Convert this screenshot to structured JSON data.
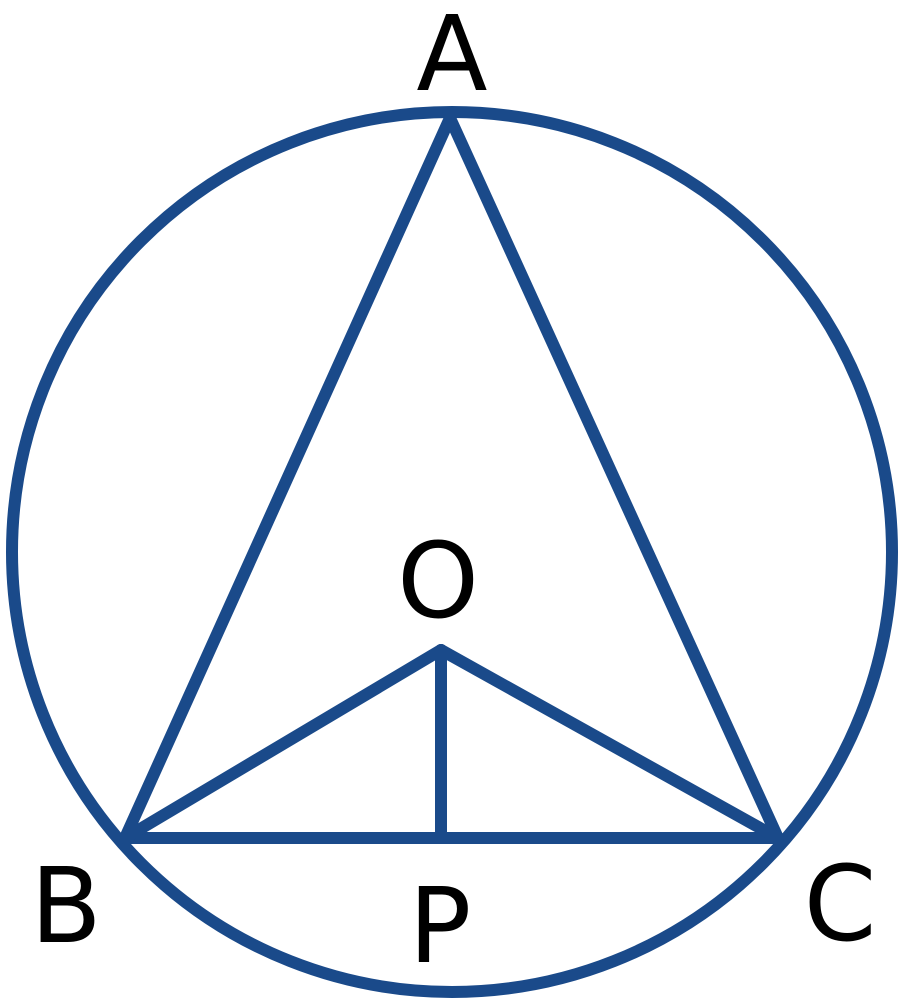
{
  "diagram": {
    "type": "circle-inscribed-triangle",
    "stroke_color": "#1a4a8a",
    "label_color": "#000000",
    "labels": {
      "A": "A",
      "B": "B",
      "C": "C",
      "O": "O",
      "P": "P"
    }
  }
}
